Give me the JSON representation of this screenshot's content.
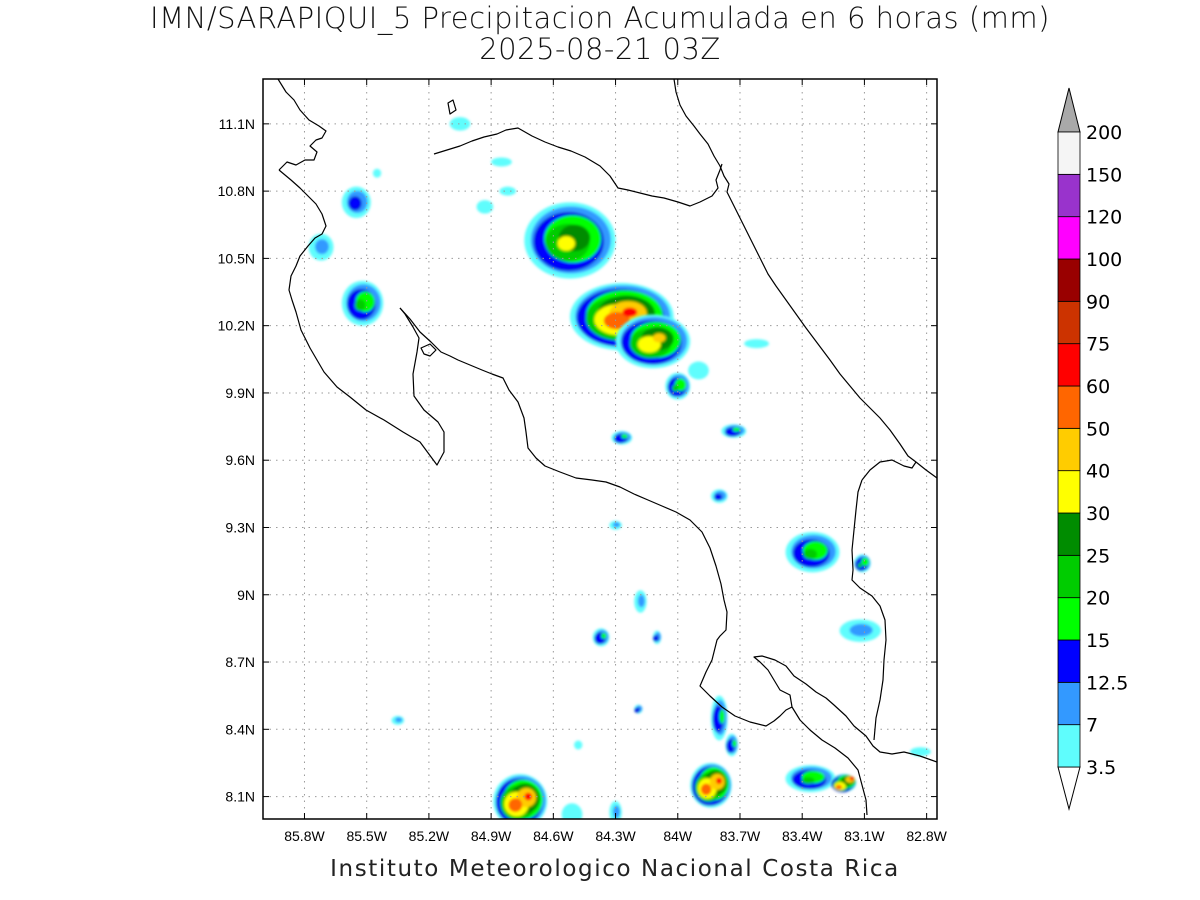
{
  "title": {
    "line1": "IMN/SARAPIQUI_5 Precipitacion Acumulada en 6 horas (mm)",
    "line2": "2025-08-21 03Z"
  },
  "footer": "Instituto Meteorologico Nacional Costa Rica",
  "map": {
    "lon_range": [
      -86.0,
      -82.75
    ],
    "lat_range": [
      8.0,
      11.3
    ],
    "lon_ticks": [
      "85.8W",
      "85.5W",
      "85.2W",
      "84.9W",
      "84.6W",
      "84.3W",
      "84W",
      "83.7W",
      "83.4W",
      "83.1W",
      "82.8W"
    ],
    "lon_values": [
      -85.8,
      -85.5,
      -85.2,
      -84.9,
      -84.6,
      -84.3,
      -84.0,
      -83.7,
      -83.4,
      -83.1,
      -82.8
    ],
    "lat_ticks": [
      "8.1N",
      "8.4N",
      "8.7N",
      "9N",
      "9.3N",
      "9.6N",
      "9.9N",
      "10.2N",
      "10.5N",
      "10.8N",
      "11.1N"
    ],
    "lat_values": [
      8.1,
      8.4,
      8.7,
      9.0,
      9.3,
      9.6,
      9.9,
      10.2,
      10.5,
      10.8,
      11.1
    ],
    "grid": "dotted"
  },
  "colorbar": {
    "levels": [
      "3.5",
      "7",
      "12.5",
      "15",
      "20",
      "25",
      "30",
      "40",
      "50",
      "60",
      "75",
      "90",
      "100",
      "120",
      "150",
      "200"
    ],
    "colors": [
      "#5ffdfd",
      "#3399ff",
      "#0000ff",
      "#00ff00",
      "#00cc00",
      "#008c00",
      "#ffff00",
      "#ffcc00",
      "#ff6600",
      "#ff0000",
      "#cc3300",
      "#990000",
      "#ff00ff",
      "#9933cc",
      "#f5f5f5"
    ],
    "top_arrow_color": "#a9a9a9",
    "bottom_arrow_color": "#ffffff"
  },
  "rain_cells": [
    {
      "lon": -84.52,
      "lat": 10.58,
      "rx": 0.22,
      "ry": 0.17,
      "max": 32
    },
    {
      "lon": -84.27,
      "lat": 10.24,
      "rx": 0.25,
      "ry": 0.15,
      "max": 62
    },
    {
      "lon": -84.12,
      "lat": 10.13,
      "rx": 0.18,
      "ry": 0.12,
      "max": 42
    },
    {
      "lon": -84.0,
      "lat": 9.93,
      "rx": 0.06,
      "ry": 0.06,
      "max": 22
    },
    {
      "lon": -85.52,
      "lat": 10.3,
      "rx": 0.1,
      "ry": 0.1,
      "max": 22
    },
    {
      "lon": -85.55,
      "lat": 10.75,
      "rx": 0.07,
      "ry": 0.07,
      "max": 13
    },
    {
      "lon": -85.72,
      "lat": 10.55,
      "rx": 0.06,
      "ry": 0.06,
      "max": 9
    },
    {
      "lon": -84.27,
      "lat": 9.7,
      "rx": 0.05,
      "ry": 0.03,
      "max": 16
    },
    {
      "lon": -83.73,
      "lat": 9.73,
      "rx": 0.06,
      "ry": 0.03,
      "max": 16
    },
    {
      "lon": -83.8,
      "lat": 9.44,
      "rx": 0.04,
      "ry": 0.03,
      "max": 13
    },
    {
      "lon": -83.35,
      "lat": 9.19,
      "rx": 0.13,
      "ry": 0.09,
      "max": 22
    },
    {
      "lon": -83.11,
      "lat": 9.14,
      "rx": 0.04,
      "ry": 0.04,
      "max": 22
    },
    {
      "lon": -84.76,
      "lat": 8.08,
      "rx": 0.13,
      "ry": 0.12,
      "max": 70
    },
    {
      "lon": -83.84,
      "lat": 8.15,
      "rx": 0.1,
      "ry": 0.1,
      "max": 62
    },
    {
      "lon": -83.36,
      "lat": 8.18,
      "rx": 0.12,
      "ry": 0.06,
      "max": 24
    },
    {
      "lon": -83.2,
      "lat": 8.16,
      "rx": 0.06,
      "ry": 0.04,
      "max": 62
    },
    {
      "lon": -83.8,
      "lat": 8.45,
      "rx": 0.04,
      "ry": 0.1,
      "max": 18
    },
    {
      "lon": -83.74,
      "lat": 8.33,
      "rx": 0.03,
      "ry": 0.05,
      "max": 18
    },
    {
      "lon": -84.37,
      "lat": 8.81,
      "rx": 0.04,
      "ry": 0.04,
      "max": 18
    },
    {
      "lon": -84.18,
      "lat": 8.97,
      "rx": 0.03,
      "ry": 0.05,
      "max": 9
    },
    {
      "lon": -84.1,
      "lat": 8.81,
      "rx": 0.02,
      "ry": 0.03,
      "max": 13
    },
    {
      "lon": -84.19,
      "lat": 8.49,
      "rx": 0.02,
      "ry": 0.02,
      "max": 14
    },
    {
      "lon": -85.35,
      "lat": 8.44,
      "rx": 0.03,
      "ry": 0.02,
      "max": 8
    },
    {
      "lon": -84.48,
      "lat": 8.33,
      "rx": 0.02,
      "ry": 0.02,
      "max": 6
    },
    {
      "lon": -84.3,
      "lat": 9.31,
      "rx": 0.03,
      "ry": 0.02,
      "max": 8
    },
    {
      "lon": -83.12,
      "lat": 8.84,
      "rx": 0.1,
      "ry": 0.05,
      "max": 8
    },
    {
      "lon": -84.51,
      "lat": 8.02,
      "rx": 0.05,
      "ry": 0.05,
      "max": 5
    },
    {
      "lon": -84.3,
      "lat": 8.03,
      "rx": 0.03,
      "ry": 0.05,
      "max": 8
    },
    {
      "lon": -84.85,
      "lat": 10.93,
      "rx": 0.05,
      "ry": 0.02,
      "max": 4
    },
    {
      "lon": -84.82,
      "lat": 10.8,
      "rx": 0.04,
      "ry": 0.02,
      "max": 6
    },
    {
      "lon": -84.93,
      "lat": 10.73,
      "rx": 0.04,
      "ry": 0.03,
      "max": 5
    },
    {
      "lon": -85.05,
      "lat": 11.1,
      "rx": 0.05,
      "ry": 0.03,
      "max": 4
    },
    {
      "lon": -83.9,
      "lat": 10.0,
      "rx": 0.05,
      "ry": 0.04,
      "max": 5
    },
    {
      "lon": -83.62,
      "lat": 10.12,
      "rx": 0.06,
      "ry": 0.02,
      "max": 4
    },
    {
      "lon": -82.83,
      "lat": 8.3,
      "rx": 0.05,
      "ry": 0.02,
      "max": 4
    },
    {
      "lon": -85.45,
      "lat": 10.88,
      "rx": 0.02,
      "ry": 0.02,
      "max": 4
    }
  ]
}
